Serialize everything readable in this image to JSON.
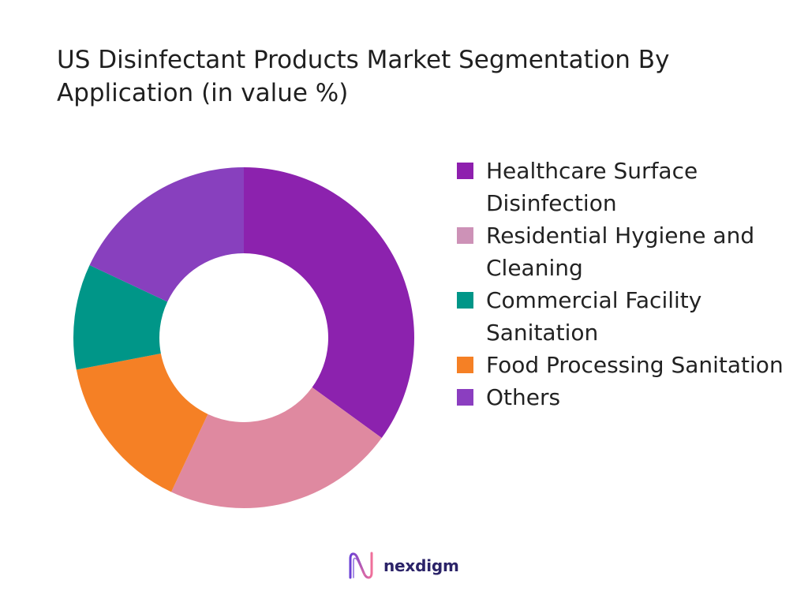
{
  "chart_data": {
    "type": "pie",
    "donut": true,
    "title": "US Disinfectant Products Market Segmentation By Application (in value %)",
    "categories": [
      "Healthcare Surface Disinfection",
      "Residential Hygiene and Cleaning",
      "Commercial Facility Sanitation",
      "Food Processing Sanitation",
      "Others"
    ],
    "values": [
      35,
      22,
      10,
      15,
      18
    ],
    "colors": [
      "#8C22AE",
      "#DF89A0",
      "#009688",
      "#F58025",
      "#8840BE"
    ],
    "legend_colors": [
      "#8E1FAE",
      "#CD92B7",
      "#009688",
      "#F58025",
      "#8B3EC0"
    ],
    "legend": "right"
  },
  "logo": {
    "text": "nexdigm",
    "icon": "nexdigm-wave-icon",
    "text_color": "#2B2368",
    "gradient": [
      "#6A3FD6",
      "#F0709A"
    ]
  }
}
